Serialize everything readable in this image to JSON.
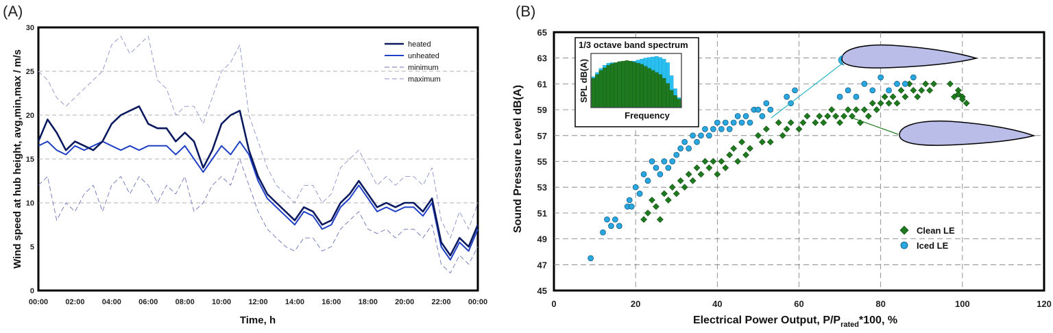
{
  "panel_a": {
    "label": "(A)",
    "chart_data": {
      "type": "line",
      "xlabel": "Time, h",
      "ylabel": "Wind speed at hub height, avg,min,max / m/s",
      "ylim": [
        0,
        30
      ],
      "xlim": [
        0,
        24
      ],
      "x_ticks": [
        "00:00",
        "02:00",
        "04:00",
        "06:00",
        "08:00",
        "10:00",
        "12:00",
        "14:00",
        "16:00",
        "18:00",
        "20:00",
        "22:00",
        "00:00"
      ],
      "y_ticks": [
        0,
        5,
        10,
        15,
        20,
        25,
        30
      ],
      "grid": "dashed, at y = 10, 15, 20, 25",
      "legend_position": "top-right",
      "x": [
        0,
        0.5,
        1,
        1.5,
        2,
        2.5,
        3,
        3.5,
        4,
        4.5,
        5,
        5.5,
        6,
        6.5,
        7,
        7.5,
        8,
        8.5,
        9,
        9.5,
        10,
        10.5,
        11,
        11.5,
        12,
        12.5,
        13,
        13.5,
        14,
        14.5,
        15,
        15.5,
        16,
        16.5,
        17,
        17.5,
        18,
        18.5,
        19,
        19.5,
        20,
        20.5,
        21,
        21.5,
        22,
        22.5,
        23,
        23.5,
        24
      ],
      "series": [
        {
          "name": "heated",
          "color": "#0b1a5e",
          "style": "solid-thick",
          "values": [
            17,
            19.5,
            18,
            16,
            17,
            16.5,
            16,
            17,
            19,
            20,
            20.5,
            21,
            19,
            18.5,
            18.5,
            17,
            18,
            17,
            14,
            16,
            19,
            20,
            20.5,
            16,
            13,
            11,
            10,
            9,
            8,
            9.5,
            9,
            7.5,
            8,
            10,
            11,
            12.5,
            11,
            9.5,
            10,
            9.5,
            10,
            10,
            9,
            10.5,
            5.5,
            4,
            6,
            5,
            7.5
          ]
        },
        {
          "name": "unheated",
          "color": "#1f3fc4",
          "style": "solid",
          "values": [
            16.5,
            17,
            16,
            15.5,
            16.5,
            16,
            16.5,
            17,
            16.5,
            16,
            16.5,
            16,
            16.5,
            16.5,
            16.5,
            15.5,
            16.5,
            15,
            13.5,
            15,
            16.5,
            15.5,
            17,
            15.5,
            12.5,
            10.5,
            9.5,
            8.5,
            7.5,
            9,
            8.5,
            7,
            7.5,
            9.5,
            10.5,
            12,
            10.5,
            9,
            9.5,
            9,
            9.5,
            9.5,
            8.5,
            10,
            5,
            3.5,
            5.5,
            4.5,
            7
          ]
        },
        {
          "name": "minimum",
          "color": "#6a73b8",
          "style": "dashed",
          "values": [
            12,
            13,
            8,
            10,
            9,
            11,
            12,
            9,
            12,
            13,
            11,
            13,
            12,
            10,
            12,
            11,
            13,
            9,
            10,
            12,
            13,
            12,
            15,
            12,
            9,
            7,
            6,
            5,
            4.5,
            6,
            6,
            4.5,
            5,
            7,
            8,
            9,
            7,
            6.5,
            7,
            6,
            7,
            7,
            6,
            7.5,
            3,
            2,
            4,
            3,
            5
          ]
        },
        {
          "name": "maximum",
          "color": "#8a91c8",
          "style": "dashed",
          "values": [
            25,
            24,
            22,
            21,
            22,
            23,
            24,
            25,
            28,
            29,
            27,
            28,
            29,
            24,
            23,
            20,
            21,
            21,
            19,
            22,
            25,
            26,
            28,
            20,
            17,
            14,
            12,
            11,
            10,
            12,
            12,
            10,
            11,
            14,
            15,
            16,
            14,
            12,
            13,
            12,
            13,
            13,
            12,
            14,
            8,
            6,
            9,
            7,
            10
          ]
        }
      ]
    }
  },
  "panel_b": {
    "label": "(B)",
    "chart_data": {
      "type": "scatter",
      "xlabel_main": "Electrical Power Output, P/P",
      "xlabel_sub": "rated",
      "xlabel_tail": "*100, %",
      "ylabel": "Sound Pressure Level dB(A)",
      "xlim": [
        0,
        120
      ],
      "ylim": [
        45,
        65
      ],
      "x_ticks": [
        0,
        20,
        40,
        60,
        80,
        100,
        120
      ],
      "y_ticks": [
        45,
        47,
        49,
        51,
        53,
        55,
        57,
        59,
        61,
        63,
        65
      ],
      "grid": "dashed, both axes",
      "legend_position": "bottom-right",
      "series": [
        {
          "name": "Clean LE",
          "color": "#1f7a1f",
          "marker": "diamond",
          "points": [
            [
              22,
              50.5
            ],
            [
              23,
              51
            ],
            [
              24,
              52
            ],
            [
              25,
              51.5
            ],
            [
              26,
              50.5
            ],
            [
              27,
              52.5
            ],
            [
              28,
              52
            ],
            [
              29,
              53
            ],
            [
              30,
              52.5
            ],
            [
              31,
              53.5
            ],
            [
              32,
              53
            ],
            [
              33,
              54
            ],
            [
              34,
              53.5
            ],
            [
              35,
              54.5
            ],
            [
              36,
              54
            ],
            [
              37,
              55
            ],
            [
              38,
              54.5
            ],
            [
              39,
              55
            ],
            [
              40,
              54
            ],
            [
              41,
              55
            ],
            [
              42,
              54.5
            ],
            [
              43,
              55.5
            ],
            [
              44,
              56
            ],
            [
              45,
              55
            ],
            [
              46,
              56.5
            ],
            [
              47,
              55.5
            ],
            [
              48,
              56
            ],
            [
              50,
              57
            ],
            [
              51,
              56.5
            ],
            [
              52,
              57.5
            ],
            [
              53,
              56.5
            ],
            [
              55,
              58
            ],
            [
              56,
              57
            ],
            [
              57,
              57.5
            ],
            [
              58,
              58
            ],
            [
              60,
              57.5
            ],
            [
              61,
              58
            ],
            [
              62,
              58.5
            ],
            [
              64,
              58
            ],
            [
              65,
              58.5
            ],
            [
              66,
              58
            ],
            [
              67,
              58.5
            ],
            [
              68,
              59
            ],
            [
              69,
              58.5
            ],
            [
              70,
              58
            ],
            [
              71,
              58.5
            ],
            [
              72,
              59
            ],
            [
              73,
              58.5
            ],
            [
              74,
              59
            ],
            [
              75,
              58
            ],
            [
              76,
              59
            ],
            [
              77,
              58.5
            ],
            [
              78,
              59.5
            ],
            [
              79,
              59
            ],
            [
              80,
              59.5
            ],
            [
              81,
              60
            ],
            [
              82,
              59.5
            ],
            [
              83,
              60
            ],
            [
              84,
              59.5
            ],
            [
              85,
              60.5
            ],
            [
              86,
              60
            ],
            [
              87,
              61
            ],
            [
              88,
              60.5
            ],
            [
              89,
              60
            ],
            [
              90,
              60.5
            ],
            [
              91,
              61
            ],
            [
              92,
              60.5
            ],
            [
              93,
              61
            ],
            [
              97,
              61
            ],
            [
              98,
              60
            ],
            [
              99,
              60.5
            ],
            [
              100,
              60
            ],
            [
              101,
              59.5
            ],
            [
              100,
              59.8
            ],
            [
              99,
              60.2
            ]
          ]
        },
        {
          "name": "Iced LE",
          "color": "#29a8e0",
          "marker": "circle",
          "points": [
            [
              9,
              47.5
            ],
            [
              12,
              49.5
            ],
            [
              13,
              50.5
            ],
            [
              14,
              50
            ],
            [
              15,
              50.5
            ],
            [
              16,
              50
            ],
            [
              18,
              51.5
            ],
            [
              18.5,
              52
            ],
            [
              19,
              51.5
            ],
            [
              20,
              53
            ],
            [
              21,
              52.5
            ],
            [
              22,
              54
            ],
            [
              23,
              53.5
            ],
            [
              24,
              55
            ],
            [
              25,
              54.5
            ],
            [
              26,
              54
            ],
            [
              27,
              55
            ],
            [
              28,
              54.5
            ],
            [
              29,
              55
            ],
            [
              30,
              55.5
            ],
            [
              31,
              56
            ],
            [
              32,
              56.5
            ],
            [
              33,
              56
            ],
            [
              34,
              57
            ],
            [
              35,
              56.5
            ],
            [
              36,
              57
            ],
            [
              37,
              57.5
            ],
            [
              38,
              57
            ],
            [
              39,
              57.5
            ],
            [
              40,
              58
            ],
            [
              41,
              57.5
            ],
            [
              42,
              58
            ],
            [
              43,
              57.5
            ],
            [
              44,
              58
            ],
            [
              45,
              58.5
            ],
            [
              46,
              58
            ],
            [
              47,
              58.5
            ],
            [
              48,
              58
            ],
            [
              49,
              59
            ],
            [
              50,
              59
            ],
            [
              51,
              58.5
            ],
            [
              52,
              59.5
            ],
            [
              53,
              59
            ],
            [
              57,
              60
            ],
            [
              58,
              59.5
            ],
            [
              59,
              60.5
            ],
            [
              70,
              60
            ],
            [
              72,
              60.5
            ],
            [
              74,
              60
            ],
            [
              76,
              61
            ],
            [
              78,
              60.5
            ],
            [
              80,
              61.5
            ],
            [
              82,
              60.5
            ],
            [
              84,
              61
            ],
            [
              86,
              61
            ],
            [
              88,
              61.5
            ]
          ]
        }
      ]
    },
    "inset": {
      "title": "1/3 octave band spectrum",
      "ylabel": "SPL dB(A)",
      "xlabel": "Frequency",
      "bars_clean": [
        0.55,
        0.62,
        0.7,
        0.75,
        0.8,
        0.83,
        0.85,
        0.87,
        0.88,
        0.89,
        0.88,
        0.86,
        0.84,
        0.82,
        0.78,
        0.74,
        0.7,
        0.66,
        0.62,
        0.55,
        0.45,
        0.32,
        0.22,
        0.15
      ],
      "bars_iced": [
        0.58,
        0.66,
        0.74,
        0.8,
        0.84,
        0.85,
        0.84,
        0.83,
        0.82,
        0.83,
        0.85,
        0.88,
        0.9,
        0.92,
        0.94,
        0.95,
        0.96,
        0.97,
        0.95,
        0.92,
        0.85,
        0.6,
        0.35,
        0.18
      ],
      "color_clean": "#1f7a1f",
      "color_iced": "#29c0f0"
    }
  }
}
